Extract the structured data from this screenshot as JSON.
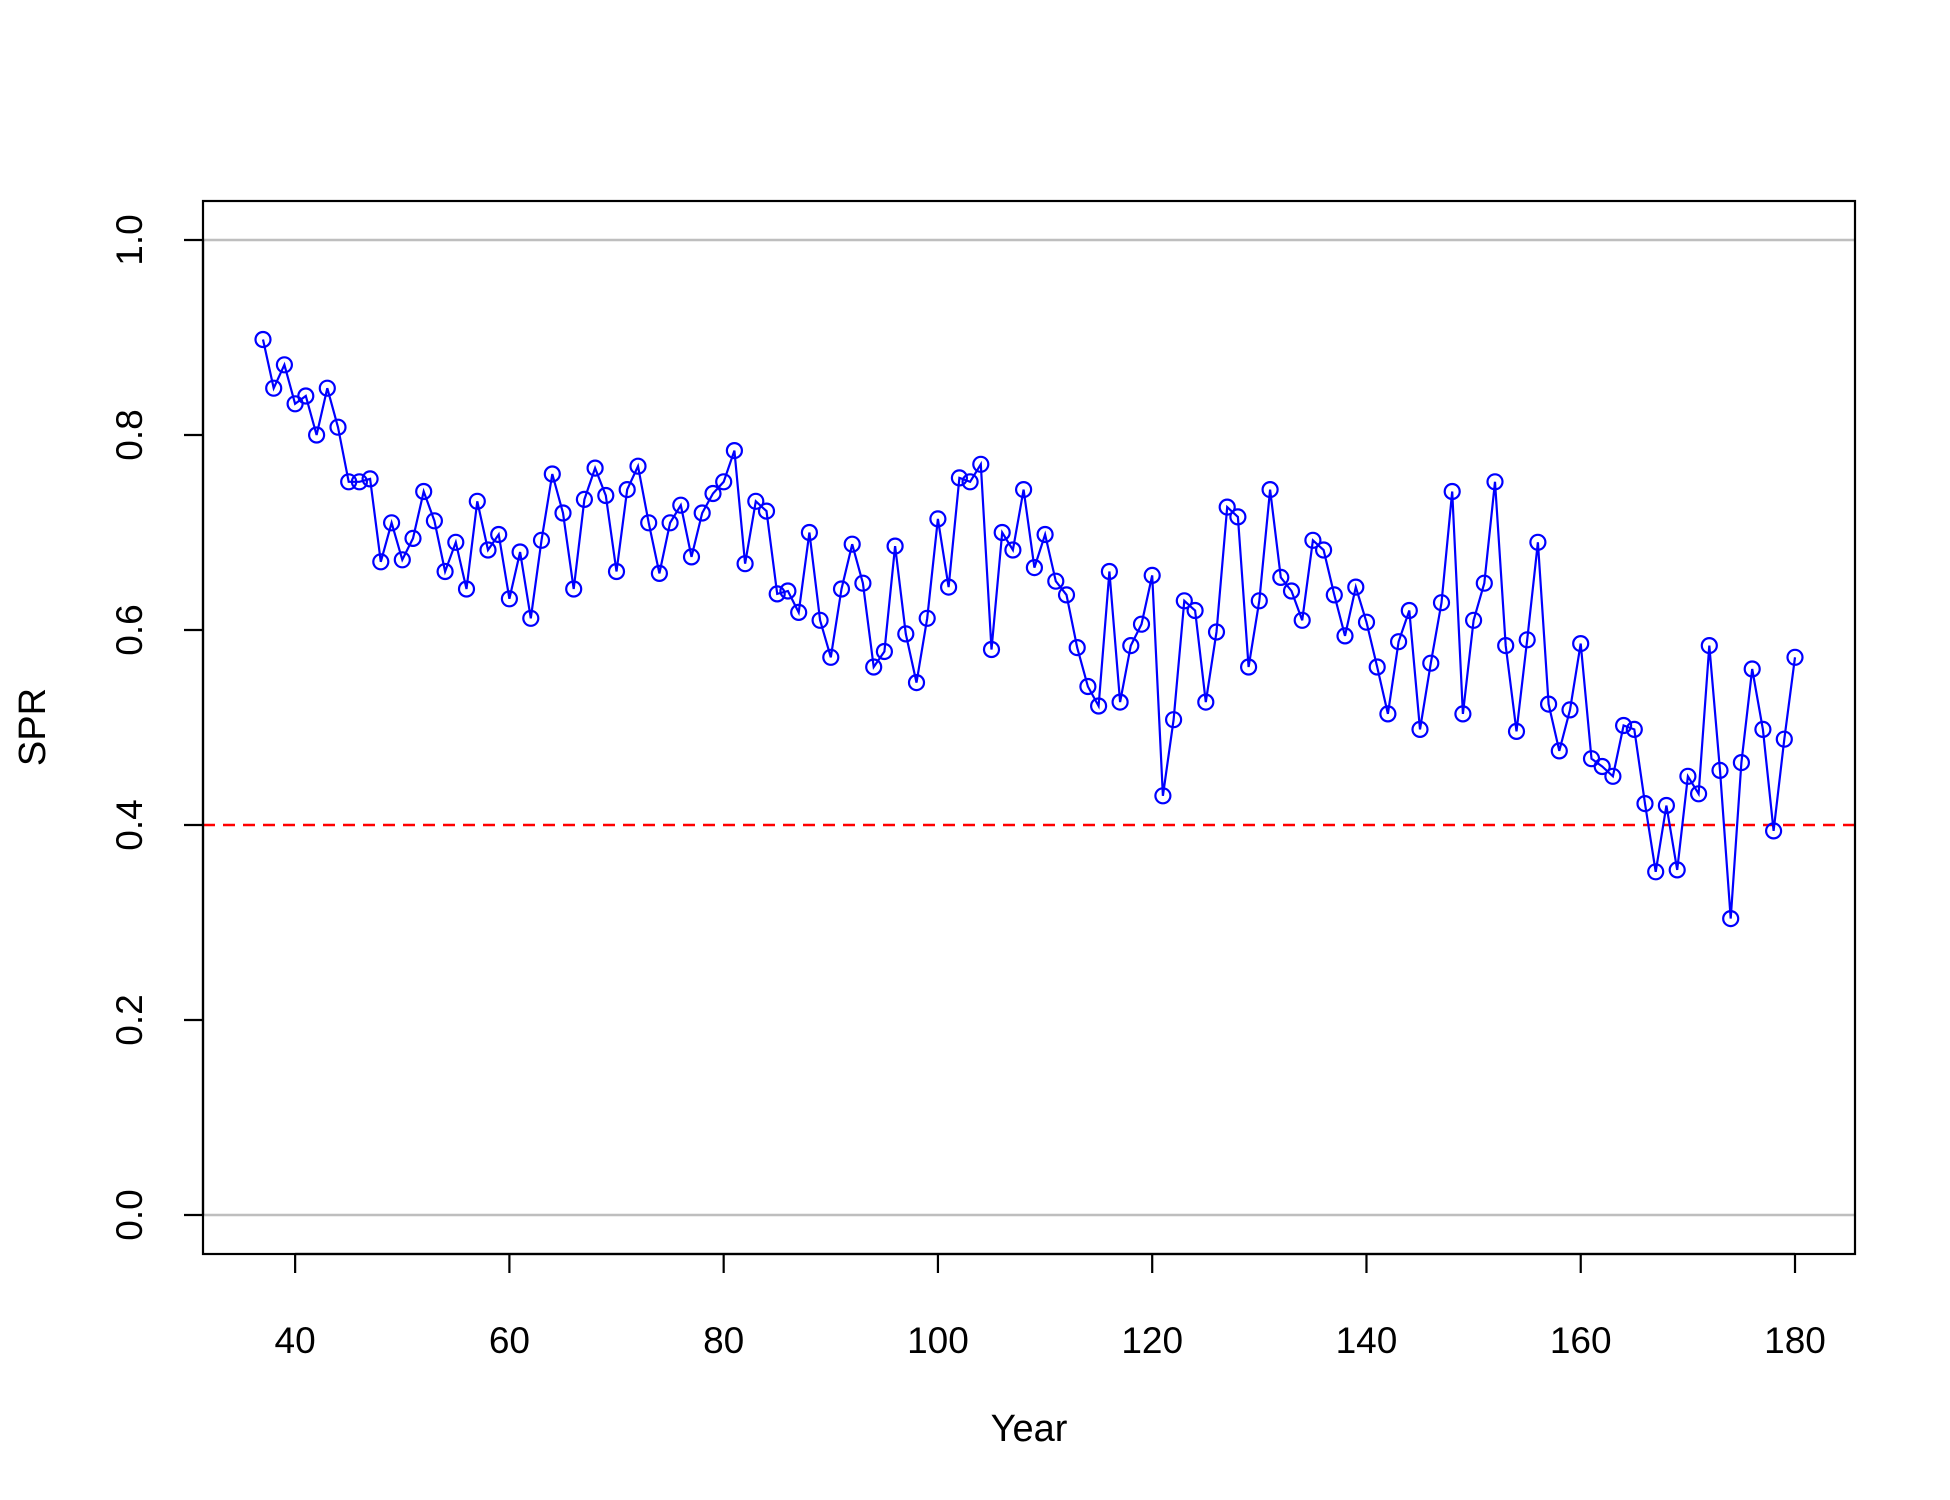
{
  "chart_data": {
    "type": "line",
    "title": "",
    "xlabel": "Year",
    "ylabel": "SPR",
    "xlim": [
      31.4,
      185.6
    ],
    "ylim": [
      -0.04,
      1.04
    ],
    "x_ticks": [
      40,
      60,
      80,
      100,
      120,
      140,
      160,
      180
    ],
    "x_tick_labels": [
      "40",
      "60",
      "80",
      "100",
      "120",
      "140",
      "160",
      "180"
    ],
    "y_ticks": [
      0.0,
      0.2,
      0.4,
      0.6,
      0.8,
      1.0
    ],
    "y_tick_labels": [
      "0.0",
      "0.2",
      "0.4",
      "0.6",
      "0.8",
      "1.0"
    ],
    "reference_lines": [
      {
        "y": 1.0,
        "color": "#bebebe",
        "style": "solid"
      },
      {
        "y": 0.0,
        "color": "#bebebe",
        "style": "solid"
      },
      {
        "y": 0.4,
        "color": "#ff0000",
        "style": "dashed"
      }
    ],
    "grid": false,
    "legend": "none",
    "series": [
      {
        "color": "#0000ff",
        "marker": "open-circle",
        "x": [
          37,
          38,
          39,
          40,
          41,
          42,
          43,
          44,
          45,
          46,
          47,
          48,
          49,
          50,
          51,
          52,
          53,
          54,
          55,
          56,
          57,
          58,
          59,
          60,
          61,
          62,
          63,
          64,
          65,
          66,
          67,
          68,
          69,
          70,
          71,
          72,
          73,
          74,
          75,
          76,
          77,
          78,
          79,
          80,
          81,
          82,
          83,
          84,
          85,
          86,
          87,
          88,
          89,
          90,
          91,
          92,
          93,
          94,
          95,
          96,
          97,
          98,
          99,
          100,
          101,
          102,
          103,
          104,
          105,
          106,
          107,
          108,
          109,
          110,
          111,
          112,
          113,
          114,
          115,
          116,
          117,
          118,
          119,
          120,
          121,
          122,
          123,
          124,
          125,
          126,
          127,
          128,
          129,
          130,
          131,
          132,
          133,
          134,
          135,
          136,
          137,
          138,
          139,
          140,
          141,
          142,
          143,
          144,
          145,
          146,
          147,
          148,
          149,
          150,
          151,
          152,
          153,
          154,
          155,
          156,
          157,
          158,
          159,
          160,
          161,
          162,
          163,
          164,
          165,
          166,
          167,
          168,
          169,
          170,
          171,
          172,
          173,
          174,
          175,
          176,
          177,
          178,
          179,
          180
        ],
        "y": [
          0.898,
          0.848,
          0.872,
          0.832,
          0.84,
          0.8,
          0.848,
          0.808,
          0.752,
          0.752,
          0.755,
          0.67,
          0.71,
          0.672,
          0.694,
          0.742,
          0.712,
          0.66,
          0.69,
          0.642,
          0.732,
          0.682,
          0.698,
          0.632,
          0.68,
          0.612,
          0.692,
          0.76,
          0.72,
          0.642,
          0.734,
          0.766,
          0.738,
          0.66,
          0.744,
          0.768,
          0.71,
          0.658,
          0.71,
          0.728,
          0.675,
          0.72,
          0.74,
          0.752,
          0.784,
          0.668,
          0.732,
          0.722,
          0.637,
          0.64,
          0.618,
          0.7,
          0.61,
          0.572,
          0.642,
          0.688,
          0.648,
          0.562,
          0.578,
          0.686,
          0.596,
          0.546,
          0.612,
          0.714,
          0.644,
          0.756,
          0.752,
          0.77,
          0.58,
          0.7,
          0.682,
          0.744,
          0.664,
          0.698,
          0.65,
          0.636,
          0.582,
          0.542,
          0.522,
          0.66,
          0.526,
          0.584,
          0.606,
          0.656,
          0.43,
          0.508,
          0.63,
          0.62,
          0.526,
          0.598,
          0.726,
          0.716,
          0.562,
          0.63,
          0.744,
          0.654,
          0.64,
          0.61,
          0.692,
          0.682,
          0.636,
          0.594,
          0.644,
          0.608,
          0.562,
          0.514,
          0.588,
          0.62,
          0.498,
          0.566,
          0.628,
          0.742,
          0.514,
          0.61,
          0.648,
          0.752,
          0.584,
          0.496,
          0.59,
          0.69,
          0.524,
          0.476,
          0.518,
          0.586,
          0.468,
          0.46,
          0.45,
          0.502,
          0.498,
          0.422,
          0.352,
          0.42,
          0.354,
          0.45,
          0.432,
          0.584,
          0.456,
          0.304,
          0.464,
          0.56,
          0.498,
          0.394,
          0.488,
          0.572
        ]
      }
    ]
  }
}
